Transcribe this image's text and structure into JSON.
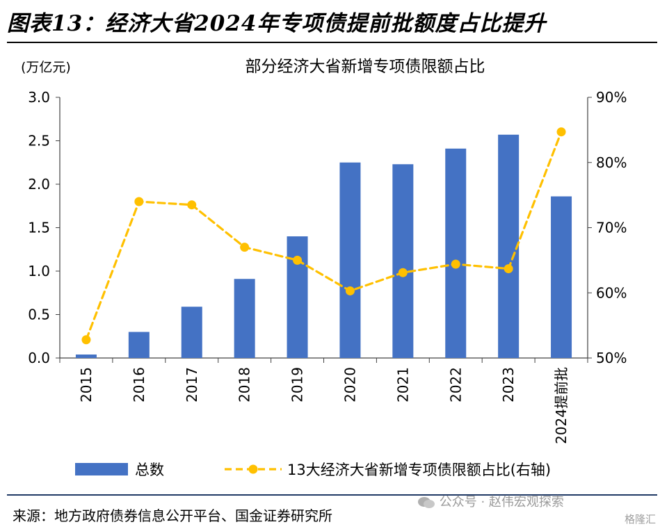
{
  "figure_title": "图表13：经济大省2024年专项债提前批额度占比提升",
  "source_label": "来源：地方政府债券信息公开平台、国金证券研究所",
  "watermark": {
    "text": "公众号 · 赵伟宏观探索",
    "icon": "wechat-icon",
    "logo_text": "格隆汇"
  },
  "colors": {
    "bar": "#4472c4",
    "line": "#ffc000",
    "axis": "#404040",
    "title_rule": "#000000",
    "bottom_rule": "#1f3864"
  },
  "chart_data": {
    "type": "bar+line",
    "title": "部分经济大省新增专项债限额占比",
    "y_left_unit": "(万亿元)",
    "categories": [
      "2015",
      "2016",
      "2017",
      "2018",
      "2019",
      "2020",
      "2021",
      "2022",
      "2023",
      "2024提前批"
    ],
    "y_left": {
      "min": 0,
      "max": 3.0,
      "ticks": [
        "0.0",
        "0.5",
        "1.0",
        "1.5",
        "2.0",
        "2.5",
        "3.0"
      ]
    },
    "y_right": {
      "min": 50,
      "max": 90,
      "ticks": [
        "50%",
        "60%",
        "70%",
        "80%",
        "90%"
      ]
    },
    "series": [
      {
        "name": "总数",
        "type": "bar",
        "axis": "left",
        "values": [
          0.04,
          0.3,
          0.59,
          0.91,
          1.4,
          2.25,
          2.23,
          2.41,
          2.57,
          1.86
        ]
      },
      {
        "name": "13大经济大省新增专项债限额占比(右轴)",
        "type": "line",
        "axis": "right",
        "style": "dashed-marker",
        "values": [
          52.8,
          74.0,
          73.5,
          67.0,
          65.0,
          60.3,
          63.1,
          64.4,
          63.7,
          84.7
        ]
      }
    ],
    "legend_position": "bottom",
    "grid": false
  }
}
